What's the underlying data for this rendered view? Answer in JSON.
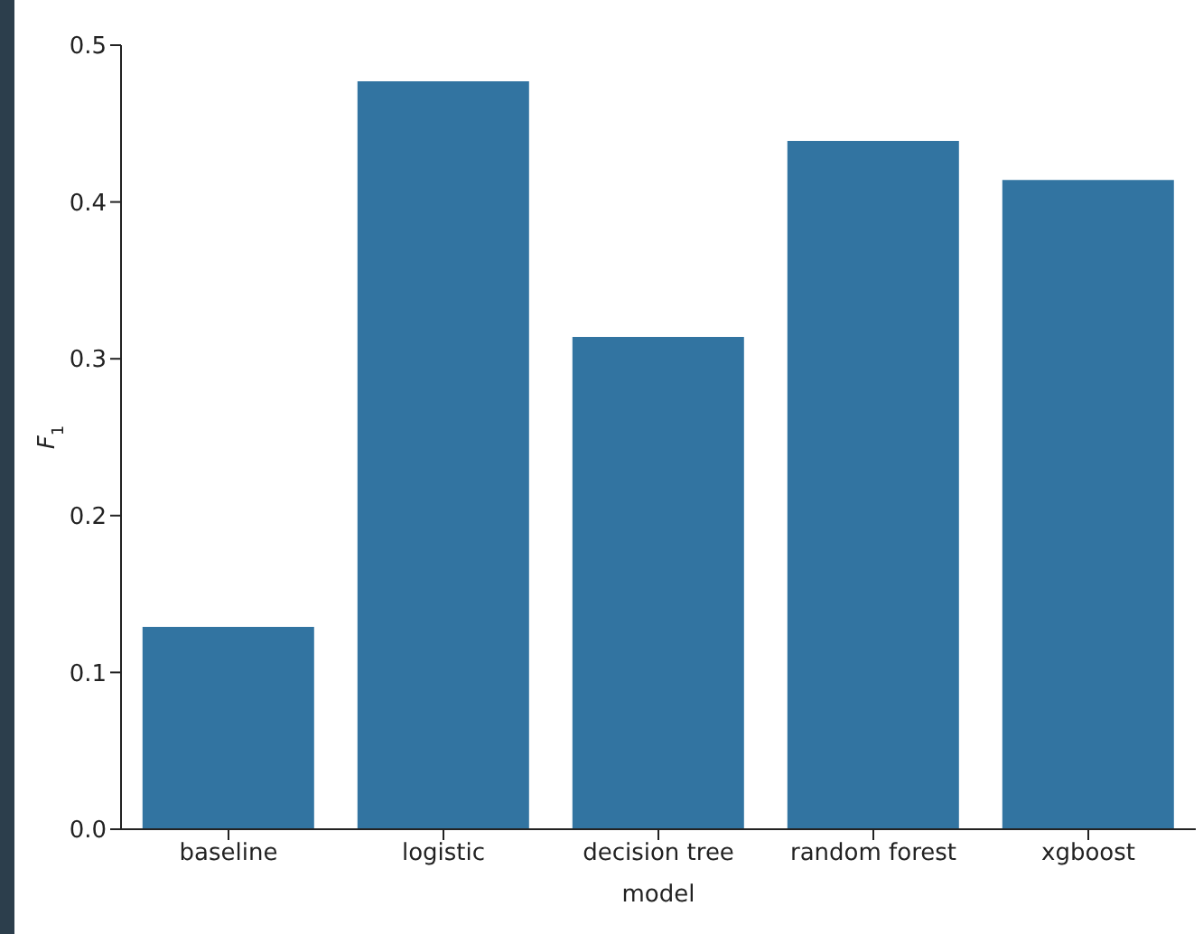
{
  "chart_data": {
    "type": "bar",
    "xlabel": "model",
    "ylabel": "F$_{1}$",
    "categories": [
      "baseline",
      "logistic",
      "decision tree",
      "random forest",
      "xgboost"
    ],
    "values": [
      0.129,
      0.477,
      0.314,
      0.439,
      0.414
    ],
    "color": "#3274a1",
    "ylim": [
      0,
      0.5
    ],
    "yticks": [
      {
        "value": 0,
        "label": "0.0"
      },
      0.1,
      0.2,
      0.3,
      0.4,
      0.5
    ],
    "grid": false,
    "legend": false
  }
}
